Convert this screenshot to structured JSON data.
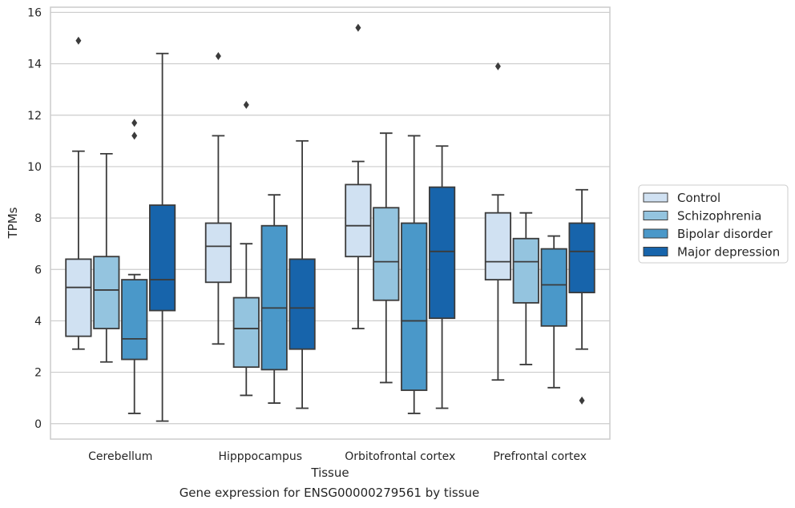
{
  "caption": "Gene expression for ENSG00000279561 by tissue",
  "chart_data": {
    "type": "box",
    "xlabel": "Tissue",
    "ylabel": "TPMs",
    "ylim": [
      -0.6,
      16.2
    ],
    "yticks": [
      0,
      2,
      4,
      6,
      8,
      10,
      12,
      14,
      16
    ],
    "grid": "horizontal",
    "legend_position": "right",
    "categories": [
      "Cerebellum",
      "Hipppocampus",
      "Orbitofrontal cortex",
      "Prefrontal cortex"
    ],
    "series": [
      {
        "name": "Control",
        "color": "#d0e1f2",
        "boxes": [
          {
            "whislo": 2.9,
            "q1": 3.4,
            "med": 5.3,
            "q3": 6.4,
            "whishi": 10.6,
            "fliers": [
              14.9
            ]
          },
          {
            "whislo": 3.1,
            "q1": 5.5,
            "med": 6.9,
            "q3": 7.8,
            "whishi": 11.2,
            "fliers": [
              14.3
            ]
          },
          {
            "whislo": 3.7,
            "q1": 6.5,
            "med": 7.7,
            "q3": 9.3,
            "whishi": 10.2,
            "fliers": [
              15.4
            ]
          },
          {
            "whislo": 1.7,
            "q1": 5.6,
            "med": 6.3,
            "q3": 8.2,
            "whishi": 8.9,
            "fliers": [
              13.9
            ]
          }
        ]
      },
      {
        "name": "Schizophrenia",
        "color": "#94c4df",
        "boxes": [
          {
            "whislo": 2.4,
            "q1": 3.7,
            "med": 5.2,
            "q3": 6.5,
            "whishi": 10.5,
            "fliers": []
          },
          {
            "whislo": 1.1,
            "q1": 2.2,
            "med": 3.7,
            "q3": 4.9,
            "whishi": 7.0,
            "fliers": [
              12.4
            ]
          },
          {
            "whislo": 1.6,
            "q1": 4.8,
            "med": 6.3,
            "q3": 8.4,
            "whishi": 11.3,
            "fliers": []
          },
          {
            "whislo": 2.3,
            "q1": 4.7,
            "med": 6.3,
            "q3": 7.2,
            "whishi": 8.2,
            "fliers": []
          }
        ]
      },
      {
        "name": "Bipolar disorder",
        "color": "#4a98c9",
        "boxes": [
          {
            "whislo": 0.4,
            "q1": 2.5,
            "med": 3.3,
            "q3": 5.6,
            "whishi": 5.8,
            "fliers": [
              11.2,
              11.7
            ]
          },
          {
            "whislo": 0.8,
            "q1": 2.1,
            "med": 4.5,
            "q3": 7.7,
            "whishi": 8.9,
            "fliers": []
          },
          {
            "whislo": 0.4,
            "q1": 1.3,
            "med": 4.0,
            "q3": 7.8,
            "whishi": 11.2,
            "fliers": []
          },
          {
            "whislo": 1.4,
            "q1": 3.8,
            "med": 5.4,
            "q3": 6.8,
            "whishi": 7.3,
            "fliers": []
          }
        ]
      },
      {
        "name": "Major depression",
        "color": "#1764ab",
        "boxes": [
          {
            "whislo": 0.1,
            "q1": 4.4,
            "med": 5.6,
            "q3": 8.5,
            "whishi": 14.4,
            "fliers": []
          },
          {
            "whislo": 0.6,
            "q1": 2.9,
            "med": 4.5,
            "q3": 6.4,
            "whishi": 11.0,
            "fliers": []
          },
          {
            "whislo": 0.6,
            "q1": 4.1,
            "med": 6.7,
            "q3": 9.2,
            "whishi": 10.8,
            "fliers": []
          },
          {
            "whislo": 2.9,
            "q1": 5.1,
            "med": 6.7,
            "q3": 7.8,
            "whishi": 9.1,
            "fliers": [
              0.9
            ]
          }
        ]
      }
    ]
  }
}
